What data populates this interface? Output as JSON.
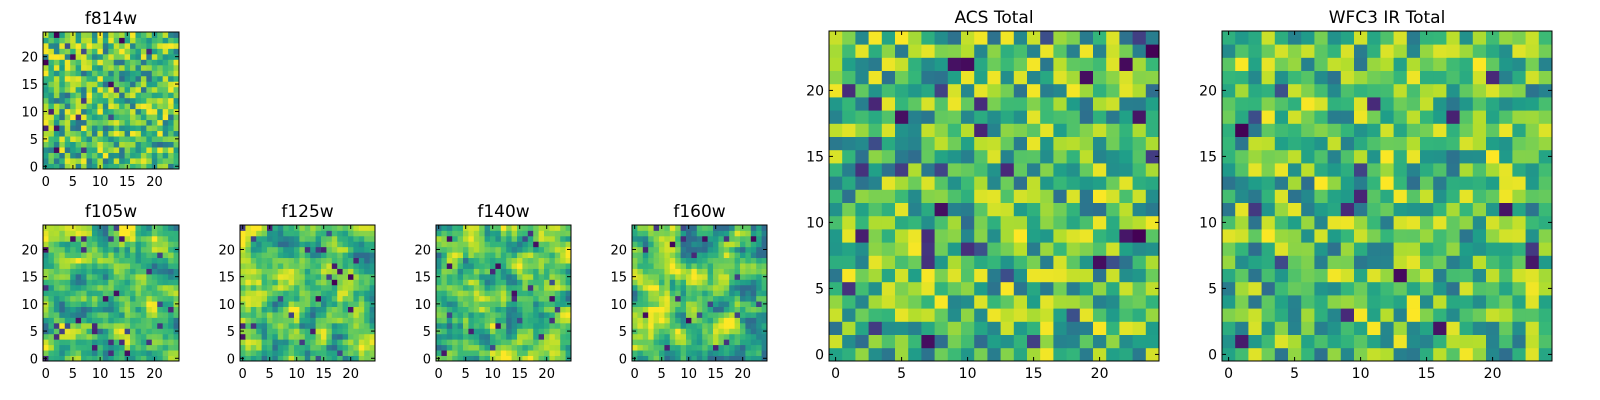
{
  "chart_data": [
    {
      "type": "heatmap",
      "title": "f814w",
      "xticks": [
        "0",
        "5",
        "10",
        "15",
        "20"
      ],
      "yticks": [
        "0",
        "5",
        "10",
        "15",
        "20"
      ],
      "xlim": [
        -0.5,
        24.5
      ],
      "ylim": [
        -0.5,
        24.5
      ],
      "colormap": "viridis",
      "grid": false,
      "seed": 11,
      "smooth": 0,
      "values": []
    },
    {
      "type": "heatmap",
      "title": "f105w",
      "xticks": [
        "0",
        "5",
        "10",
        "15",
        "20"
      ],
      "yticks": [
        "0",
        "5",
        "10",
        "15",
        "20"
      ],
      "xlim": [
        -0.5,
        24.5
      ],
      "ylim": [
        -0.5,
        24.5
      ],
      "colormap": "viridis",
      "grid": false,
      "seed": 23,
      "smooth": 1,
      "values": []
    },
    {
      "type": "heatmap",
      "title": "f125w",
      "xticks": [
        "0",
        "5",
        "10",
        "15",
        "20"
      ],
      "yticks": [
        "0",
        "5",
        "10",
        "15",
        "20"
      ],
      "xlim": [
        -0.5,
        24.5
      ],
      "ylim": [
        -0.5,
        24.5
      ],
      "colormap": "viridis",
      "grid": false,
      "seed": 37,
      "smooth": 1,
      "values": []
    },
    {
      "type": "heatmap",
      "title": "f140w",
      "xticks": [
        "0",
        "5",
        "10",
        "15",
        "20"
      ],
      "yticks": [
        "0",
        "5",
        "10",
        "15",
        "20"
      ],
      "xlim": [
        -0.5,
        24.5
      ],
      "ylim": [
        -0.5,
        24.5
      ],
      "colormap": "viridis",
      "grid": false,
      "seed": 41,
      "smooth": 1,
      "values": []
    },
    {
      "type": "heatmap",
      "title": "f160w",
      "xticks": [
        "0",
        "5",
        "10",
        "15",
        "20"
      ],
      "yticks": [
        "0",
        "5",
        "10",
        "15",
        "20"
      ],
      "xlim": [
        -0.5,
        24.5
      ],
      "ylim": [
        -0.5,
        24.5
      ],
      "colormap": "viridis",
      "grid": false,
      "seed": 53,
      "smooth": 1,
      "values": []
    },
    {
      "type": "heatmap",
      "title": "ACS Total",
      "xticks": [
        "0",
        "5",
        "10",
        "15",
        "20"
      ],
      "yticks": [
        "0",
        "5",
        "10",
        "15",
        "20"
      ],
      "xlim": [
        -0.5,
        24.5
      ],
      "ylim": [
        -0.5,
        24.5
      ],
      "colormap": "viridis",
      "grid": false,
      "seed": 67,
      "smooth": 0,
      "values": []
    },
    {
      "type": "heatmap",
      "title": "WFC3 IR Total",
      "xticks": [
        "0",
        "5",
        "10",
        "15",
        "20"
      ],
      "yticks": [
        "0",
        "5",
        "10",
        "15",
        "20"
      ],
      "xlim": [
        -0.5,
        24.5
      ],
      "ylim": [
        -0.5,
        24.5
      ],
      "colormap": "viridis",
      "grid": false,
      "seed": 79,
      "smooth": 0,
      "values": []
    }
  ]
}
